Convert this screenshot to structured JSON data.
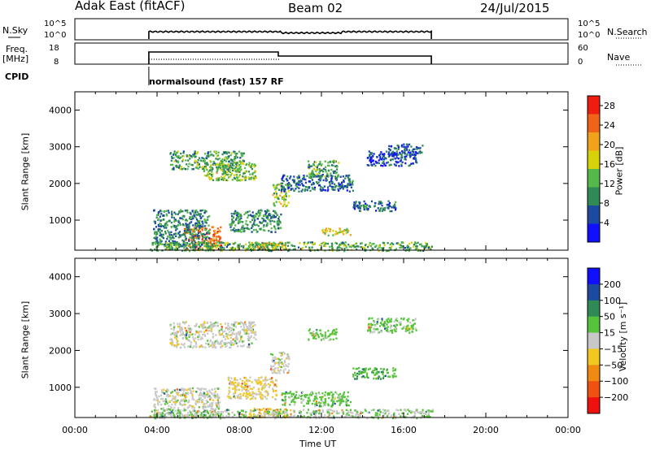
{
  "header": {
    "radar": "Adak East (fitACF)",
    "beam": "Beam 02",
    "date": "24/Jul/2015"
  },
  "left_labels": {
    "nsky": "N.Sky",
    "freq_1": "Freq.",
    "freq_2": "[MHz]",
    "cpid": "CPID"
  },
  "right_labels": {
    "nsearch": "N.Search",
    "nave": "Nave"
  },
  "strip1": {
    "left_top": "10^5",
    "left_bot": "10^0",
    "right_top": "10^5",
    "right_bot": "10^0"
  },
  "strip2": {
    "left_top": "18",
    "left_bot": "8",
    "right_top": "60",
    "right_bot": "0"
  },
  "cpid_text": "normalsound (fast) 157 RF",
  "x_axis": {
    "ticks": [
      "00:00",
      "04:00",
      "08:00",
      "12:00",
      "16:00",
      "20:00",
      "00:00"
    ],
    "label": "Time UT"
  },
  "chart_data": [
    {
      "type": "heatmap",
      "title": "",
      "ylabel": "Slant Range [km]",
      "xlabel": "Time UT",
      "xlim": [
        0,
        24
      ],
      "ylim": [
        180,
        4500
      ],
      "yticks": [
        "1000",
        "2000",
        "3000",
        "4000"
      ],
      "colorbar": {
        "label": "Power [dB]",
        "ticks": [
          "4",
          "8",
          "12",
          "16",
          "20",
          "24",
          "28"
        ],
        "range": [
          0,
          30
        ],
        "colors": [
          "#1010ff",
          "#1c4aa0",
          "#2f8a55",
          "#55b84a",
          "#d8d20a",
          "#f0a21a",
          "#f06318",
          "#ef1c10"
        ]
      },
      "regions": [
        {
          "t": [
            5.3,
            7.1
          ],
          "r": [
            200,
            850
          ],
          "v": 24
        },
        {
          "t": [
            3.8,
            6.5
          ],
          "r": [
            300,
            1300
          ],
          "v": 9
        },
        {
          "t": [
            4.6,
            8.2
          ],
          "r": [
            2400,
            2900
          ],
          "v": 11
        },
        {
          "t": [
            6.2,
            8.8
          ],
          "r": [
            2100,
            2600
          ],
          "v": 14
        },
        {
          "t": [
            7.5,
            10.0
          ],
          "r": [
            700,
            1300
          ],
          "v": 10
        },
        {
          "t": [
            8.5,
            10.3
          ],
          "r": [
            200,
            420
          ],
          "v": 19
        },
        {
          "t": [
            9.6,
            10.4
          ],
          "r": [
            1400,
            2000
          ],
          "v": 15
        },
        {
          "t": [
            10.0,
            13.5
          ],
          "r": [
            1800,
            2250
          ],
          "v": 7
        },
        {
          "t": [
            11.3,
            12.8
          ],
          "r": [
            2200,
            2650
          ],
          "v": 11
        },
        {
          "t": [
            12.0,
            13.4
          ],
          "r": [
            600,
            800
          ],
          "v": 17
        },
        {
          "t": [
            13.5,
            15.6
          ],
          "r": [
            1250,
            1550
          ],
          "v": 7
        },
        {
          "t": [
            14.2,
            16.6
          ],
          "r": [
            2500,
            2900
          ],
          "v": 5
        },
        {
          "t": [
            15.2,
            16.9
          ],
          "r": [
            2800,
            3100
          ],
          "v": 6
        },
        {
          "t": [
            3.6,
            17.4
          ],
          "r": [
            180,
            420
          ],
          "v": 12
        }
      ]
    },
    {
      "type": "heatmap",
      "title": "",
      "ylabel": "Slant Range [km]",
      "xlabel": "Time UT",
      "xlim": [
        0,
        24
      ],
      "ylim": [
        180,
        4500
      ],
      "yticks": [
        "1000",
        "2000",
        "3000",
        "4000"
      ],
      "colorbar": {
        "label": "Velocity [m s⁻¹]",
        "ticks": [
          "200",
          "100",
          "50",
          "15",
          "−15",
          "−50",
          "−100",
          "−200"
        ],
        "colors": [
          "#1010ff",
          "#1c4aa0",
          "#2f8a55",
          "#55c43a",
          "#c8c8c8",
          "#f0c820",
          "#f08a10",
          "#f05010",
          "#ef1010"
        ]
      },
      "regions": [
        {
          "t": [
            3.8,
            7.0
          ],
          "r": [
            200,
            1000
          ],
          "v": 0
        },
        {
          "t": [
            4.6,
            8.8
          ],
          "r": [
            2100,
            2800
          ],
          "v": 0
        },
        {
          "t": [
            8.4,
            10.3
          ],
          "r": [
            200,
            450
          ],
          "v": -40
        },
        {
          "t": [
            9.5,
            10.4
          ],
          "r": [
            1400,
            2000
          ],
          "v": 0
        },
        {
          "t": [
            10.0,
            13.4
          ],
          "r": [
            500,
            900
          ],
          "v": 30
        },
        {
          "t": [
            11.3,
            12.7
          ],
          "r": [
            2300,
            2600
          ],
          "v": 30
        },
        {
          "t": [
            13.5,
            15.6
          ],
          "r": [
            1250,
            1550
          ],
          "v": 40
        },
        {
          "t": [
            14.2,
            16.6
          ],
          "r": [
            2500,
            2900
          ],
          "v": 25
        },
        {
          "t": [
            3.6,
            17.4
          ],
          "r": [
            180,
            420
          ],
          "v": 10
        },
        {
          "t": [
            7.4,
            9.8
          ],
          "r": [
            700,
            1300
          ],
          "v": -20
        }
      ]
    }
  ]
}
